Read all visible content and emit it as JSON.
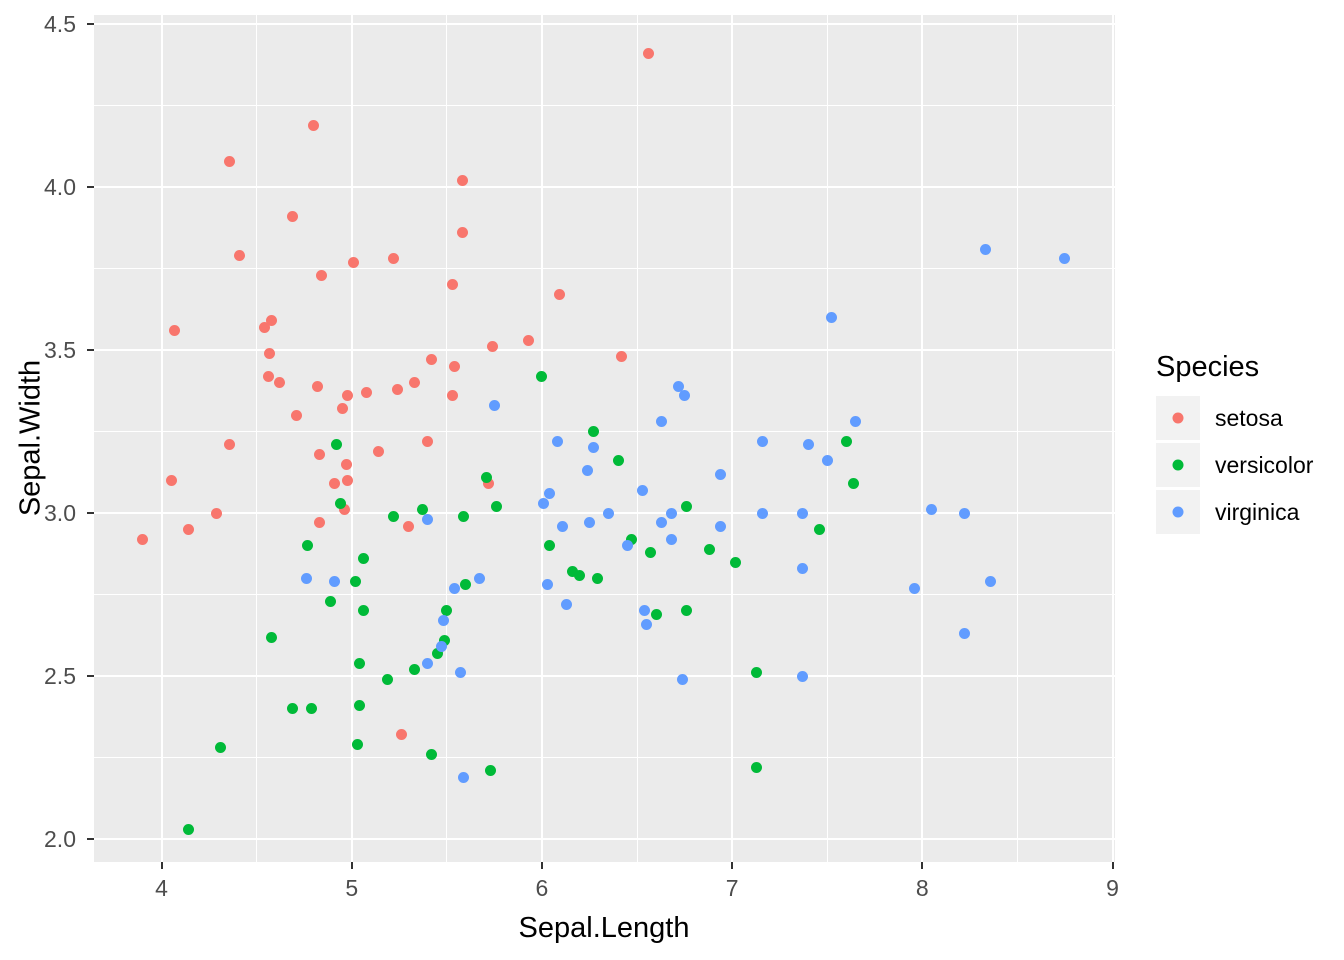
{
  "chart_data": {
    "type": "scatter",
    "title": "",
    "xlabel": "Sepal.Length",
    "ylabel": "Sepal.Width",
    "legend_title": "Species",
    "legend_position": "right",
    "grid": true,
    "xlim": [
      3.645,
      9.013
    ],
    "ylim": [
      1.93,
      4.528
    ],
    "x_ticks": [
      4,
      5,
      6,
      7,
      8,
      9
    ],
    "x_tick_labels": [
      "4",
      "5",
      "6",
      "7",
      "8",
      "9"
    ],
    "y_ticks": [
      2.0,
      2.5,
      3.0,
      3.5,
      4.0,
      4.5
    ],
    "y_tick_labels": [
      "2.0",
      "2.5",
      "3.0",
      "3.5",
      "4.0",
      "4.5"
    ],
    "x_minor_ticks": [
      4.5,
      5.5,
      6.5,
      7.5,
      8.5
    ],
    "y_minor_ticks": [
      2.25,
      2.75,
      3.25,
      3.75,
      4.25
    ],
    "series": [
      {
        "name": "setosa",
        "color": "#F8766D",
        "points": [
          [
            4.8,
            4.19
          ],
          [
            4.36,
            4.08
          ],
          [
            4.69,
            3.91
          ],
          [
            4.41,
            3.79
          ],
          [
            5.01,
            3.77
          ],
          [
            5.22,
            3.78
          ],
          [
            4.84,
            3.73
          ],
          [
            6.56,
            4.41
          ],
          [
            5.58,
            4.02
          ],
          [
            5.58,
            3.86
          ],
          [
            5.53,
            3.7
          ],
          [
            6.09,
            3.67
          ],
          [
            4.07,
            3.56
          ],
          [
            4.54,
            3.57
          ],
          [
            4.58,
            3.59
          ],
          [
            4.57,
            3.49
          ],
          [
            4.56,
            3.42
          ],
          [
            4.62,
            3.4
          ],
          [
            4.82,
            3.39
          ],
          [
            4.98,
            3.36
          ],
          [
            4.95,
            3.32
          ],
          [
            5.08,
            3.37
          ],
          [
            5.24,
            3.38
          ],
          [
            5.33,
            3.4
          ],
          [
            5.42,
            3.47
          ],
          [
            4.71,
            3.3
          ],
          [
            4.36,
            3.21
          ],
          [
            4.83,
            3.18
          ],
          [
            5.14,
            3.19
          ],
          [
            5.4,
            3.22
          ],
          [
            4.97,
            3.15
          ],
          [
            4.05,
            3.1
          ],
          [
            4.91,
            3.09
          ],
          [
            4.98,
            3.1
          ],
          [
            4.96,
            3.01
          ],
          [
            4.29,
            3.0
          ],
          [
            4.83,
            2.97
          ],
          [
            4.14,
            2.95
          ],
          [
            3.9,
            2.92
          ],
          [
            5.3,
            2.96
          ],
          [
            5.93,
            3.53
          ],
          [
            5.74,
            3.51
          ],
          [
            5.54,
            3.45
          ],
          [
            6.42,
            3.48
          ],
          [
            5.53,
            3.36
          ],
          [
            5.72,
            3.09
          ],
          [
            5.26,
            2.32
          ]
        ]
      },
      {
        "name": "versicolor",
        "color": "#00BA38",
        "points": [
          [
            4.92,
            3.21
          ],
          [
            4.94,
            3.03
          ],
          [
            5.22,
            2.99
          ],
          [
            5.37,
            3.01
          ],
          [
            4.77,
            2.9
          ],
          [
            5.06,
            2.86
          ],
          [
            5.02,
            2.79
          ],
          [
            6.0,
            3.42
          ],
          [
            6.27,
            3.25
          ],
          [
            6.4,
            3.16
          ],
          [
            5.71,
            3.11
          ],
          [
            5.76,
            3.02
          ],
          [
            6.76,
            3.02
          ],
          [
            5.59,
            2.99
          ],
          [
            6.47,
            2.92
          ],
          [
            6.04,
            2.9
          ],
          [
            6.88,
            2.89
          ],
          [
            6.57,
            2.88
          ],
          [
            7.02,
            2.85
          ],
          [
            6.16,
            2.82
          ],
          [
            6.2,
            2.81
          ],
          [
            6.29,
            2.8
          ],
          [
            7.6,
            3.22
          ],
          [
            7.64,
            3.09
          ],
          [
            7.46,
            2.95
          ],
          [
            4.89,
            2.73
          ],
          [
            5.06,
            2.7
          ],
          [
            4.58,
            2.62
          ],
          [
            5.04,
            2.54
          ],
          [
            5.33,
            2.52
          ],
          [
            5.19,
            2.49
          ],
          [
            4.69,
            2.4
          ],
          [
            4.79,
            2.4
          ],
          [
            5.04,
            2.41
          ],
          [
            5.03,
            2.29
          ],
          [
            5.42,
            2.26
          ],
          [
            4.31,
            2.28
          ],
          [
            4.14,
            2.03
          ],
          [
            5.6,
            2.78
          ],
          [
            5.5,
            2.7
          ],
          [
            6.6,
            2.69
          ],
          [
            6.76,
            2.7
          ],
          [
            5.49,
            2.61
          ],
          [
            5.45,
            2.57
          ],
          [
            7.13,
            2.51
          ],
          [
            5.73,
            2.21
          ],
          [
            7.13,
            2.22
          ]
        ]
      },
      {
        "name": "virginica",
        "color": "#619CFF",
        "points": [
          [
            8.33,
            3.81
          ],
          [
            8.75,
            3.78
          ],
          [
            5.4,
            2.98
          ],
          [
            4.76,
            2.8
          ],
          [
            4.91,
            2.79
          ],
          [
            6.72,
            3.39
          ],
          [
            6.75,
            3.36
          ],
          [
            5.75,
            3.33
          ],
          [
            6.63,
            3.28
          ],
          [
            6.08,
            3.22
          ],
          [
            6.27,
            3.2
          ],
          [
            7.16,
            3.22
          ],
          [
            6.24,
            3.13
          ],
          [
            6.94,
            3.12
          ],
          [
            6.53,
            3.07
          ],
          [
            6.04,
            3.06
          ],
          [
            6.01,
            3.03
          ],
          [
            6.35,
            3.0
          ],
          [
            6.68,
            3.0
          ],
          [
            7.16,
            3.0
          ],
          [
            6.63,
            2.97
          ],
          [
            6.94,
            2.96
          ],
          [
            6.11,
            2.96
          ],
          [
            6.25,
            2.97
          ],
          [
            6.45,
            2.9
          ],
          [
            6.68,
            2.92
          ],
          [
            5.67,
            2.8
          ],
          [
            5.54,
            2.77
          ],
          [
            6.03,
            2.78
          ],
          [
            7.52,
            3.6
          ],
          [
            7.65,
            3.28
          ],
          [
            7.4,
            3.21
          ],
          [
            7.5,
            3.16
          ],
          [
            7.37,
            3.0
          ],
          [
            8.05,
            3.01
          ],
          [
            8.22,
            3.0
          ],
          [
            7.37,
            2.83
          ],
          [
            7.96,
            2.77
          ],
          [
            8.36,
            2.79
          ],
          [
            5.4,
            2.54
          ],
          [
            6.13,
            2.72
          ],
          [
            5.48,
            2.67
          ],
          [
            6.54,
            2.7
          ],
          [
            6.55,
            2.66
          ],
          [
            5.57,
            2.51
          ],
          [
            6.74,
            2.49
          ],
          [
            5.59,
            2.19
          ],
          [
            5.47,
            2.59
          ],
          [
            8.22,
            2.63
          ],
          [
            7.37,
            2.5
          ]
        ]
      }
    ]
  },
  "colors": {
    "background": "#FFFFFF",
    "panel_background": "#EBEBEB",
    "grid_major": "#FFFFFF",
    "grid_minor": "#FFFFFF",
    "tick_mark": "#333333",
    "tick_label": "#4D4D4D",
    "axis_title": "#000000",
    "legend_key_background": "#F2F2F2"
  }
}
